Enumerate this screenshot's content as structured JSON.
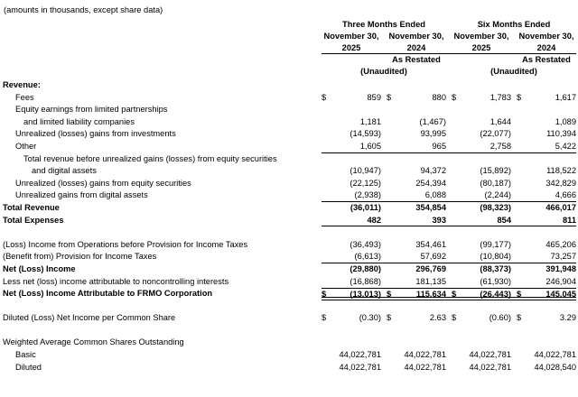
{
  "note": "(amounts in thousands, except share data)",
  "colors": {
    "text": "#000000",
    "rule": "#000000",
    "background": "#ffffff"
  },
  "header": {
    "groups": [
      {
        "title": "Three Months Ended",
        "unaudited": "(Unaudited)",
        "columns": [
          {
            "date": "November 30,",
            "year": "2025",
            "sub": ""
          },
          {
            "date": "November 30,",
            "year": "2024",
            "sub": "As Restated"
          }
        ]
      },
      {
        "title": "Six Months Ended",
        "unaudited": "(Unaudited)",
        "columns": [
          {
            "date": "November 30,",
            "year": "2025",
            "sub": ""
          },
          {
            "date": "November 30,",
            "year": "2024",
            "sub": "As Restated"
          }
        ]
      }
    ]
  },
  "table": {
    "rows": [
      {
        "label": "Revenue:",
        "indent": 0,
        "bold": true,
        "dollar": false,
        "values": null,
        "rule": "none"
      },
      {
        "label": "Fees",
        "indent": 1,
        "bold": false,
        "dollar": true,
        "values": [
          "859",
          "880",
          "1,783",
          "1,617"
        ],
        "rule": "none"
      },
      {
        "label": "Equity earnings from limited partnerships",
        "indent": 1,
        "bold": false,
        "dollar": false,
        "values": null,
        "rule": "none"
      },
      {
        "label": "and limited liability companies",
        "indent": 2,
        "bold": false,
        "dollar": false,
        "values": [
          "1,181",
          "(1,467)",
          "1,644",
          "1,089"
        ],
        "rule": "none"
      },
      {
        "label": "Unrealized (losses) gains from investments",
        "indent": 1,
        "bold": false,
        "dollar": false,
        "values": [
          "(14,593)",
          "93,995",
          "(22,077)",
          "110,394"
        ],
        "rule": "none"
      },
      {
        "label": "Other",
        "indent": 1,
        "bold": false,
        "dollar": false,
        "values": [
          "1,605",
          "965",
          "2,758",
          "5,422"
        ],
        "rule": "bottom"
      },
      {
        "label": "Total revenue before unrealized gains (losses) from equity securities",
        "indent": 2,
        "bold": false,
        "dollar": false,
        "values": null,
        "rule": "none"
      },
      {
        "label": "and digital assets",
        "indent": 3,
        "bold": false,
        "dollar": false,
        "values": [
          "(10,947)",
          "94,372",
          "(15,892)",
          "118,522"
        ],
        "rule": "none"
      },
      {
        "label": "Unrealized (losses) gains from equity securities",
        "indent": 1,
        "bold": false,
        "dollar": false,
        "values": [
          "(22,125)",
          "254,394",
          "(80,187)",
          "342,829"
        ],
        "rule": "none"
      },
      {
        "label": "Unrealized gains from digital assets",
        "indent": 1,
        "bold": false,
        "dollar": false,
        "values": [
          "(2,938)",
          "6,088",
          "(2,244)",
          "4,666"
        ],
        "rule": "bottom"
      },
      {
        "label": "Total Revenue",
        "indent": 0,
        "bold": true,
        "dollar": false,
        "values": [
          "(36,011)",
          "354,854",
          "(98,323)",
          "466,017"
        ],
        "rule": "none"
      },
      {
        "label": "Total Expenses",
        "indent": 0,
        "bold": true,
        "dollar": false,
        "values": [
          "482",
          "393",
          "854",
          "811"
        ],
        "rule": "bottom"
      },
      {
        "label": "",
        "indent": 0,
        "bold": false,
        "dollar": false,
        "values": null,
        "rule": "none",
        "spacer": true
      },
      {
        "label": "(Loss) Income from Operations before Provision for Income Taxes",
        "indent": 0,
        "bold": false,
        "dollar": false,
        "values": [
          "(36,493)",
          "354,461",
          "(99,177)",
          "465,206"
        ],
        "rule": "none"
      },
      {
        "label": "(Benefit from) Provision for Income Taxes",
        "indent": 0,
        "bold": false,
        "dollar": false,
        "values": [
          "(6,613)",
          "57,692",
          "(10,804)",
          "73,257"
        ],
        "rule": "bottom"
      },
      {
        "label": "Net (Loss) Income",
        "indent": 0,
        "bold": true,
        "dollar": false,
        "values": [
          "(29,880)",
          "296,769",
          "(88,373)",
          "391,948"
        ],
        "rule": "none"
      },
      {
        "label": "Less net (loss) income attributable to noncontrolling interests",
        "indent": 0,
        "bold": false,
        "dollar": false,
        "values": [
          "(16,868)",
          "181,135",
          "(61,930)",
          "246,904"
        ],
        "rule": "none"
      },
      {
        "label": "Net (Loss) Income Attributable to FRMO Corporation",
        "indent": 0,
        "bold": true,
        "dollar": true,
        "values": [
          "(13,013)",
          "115,634",
          "(26,443)",
          "145,045"
        ],
        "rule": "top-double"
      },
      {
        "label": "",
        "indent": 0,
        "bold": false,
        "dollar": false,
        "values": null,
        "rule": "none",
        "spacer": true
      },
      {
        "label": "Diluted (Loss) Net Income per Common Share",
        "indent": 0,
        "bold": false,
        "dollar": true,
        "values": [
          "(0.30)",
          "2.63",
          "(0.60)",
          "3.29"
        ],
        "rule": "none"
      },
      {
        "label": "",
        "indent": 0,
        "bold": false,
        "dollar": false,
        "values": null,
        "rule": "none",
        "spacer": true
      },
      {
        "label": "Weighted Average Common Shares Outstanding",
        "indent": 0,
        "bold": false,
        "dollar": false,
        "values": null,
        "rule": "none"
      },
      {
        "label": "Basic",
        "indent": 1,
        "bold": false,
        "dollar": false,
        "values": [
          "44,022,781",
          "44,022,781",
          "44,022,781",
          "44,022,781"
        ],
        "rule": "none"
      },
      {
        "label": "Diluted",
        "indent": 1,
        "bold": false,
        "dollar": false,
        "values": [
          "44,022,781",
          "44,022,781",
          "44,022,781",
          "44,028,540"
        ],
        "rule": "none"
      }
    ]
  }
}
